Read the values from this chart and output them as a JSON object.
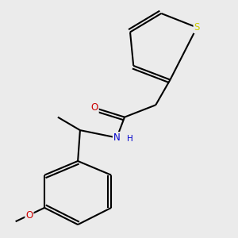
{
  "background_color": "#ebebeb",
  "atom_colors": {
    "C": "#000000",
    "H": "#000000",
    "N": "#0000cc",
    "O": "#cc0000",
    "S": "#cccc00"
  },
  "bond_color": "#000000",
  "bond_width": 1.5,
  "figsize": [
    3.0,
    3.0
  ],
  "dpi": 100,
  "xlim": [
    0,
    10
  ],
  "ylim": [
    0,
    10
  ]
}
